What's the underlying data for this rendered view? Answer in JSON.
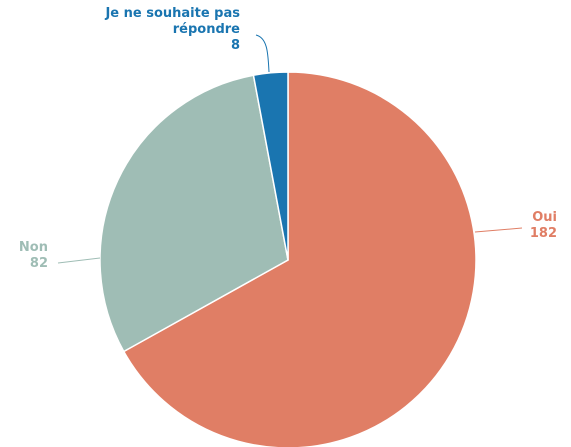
{
  "chart_data": {
    "type": "pie",
    "categories": [
      "Oui",
      "Non",
      "Je ne souhaite pas répondre"
    ],
    "values": [
      182,
      82,
      8
    ],
    "colors": [
      "#e07e65",
      "#9fbdb5",
      "#1a75b0"
    ]
  }
}
